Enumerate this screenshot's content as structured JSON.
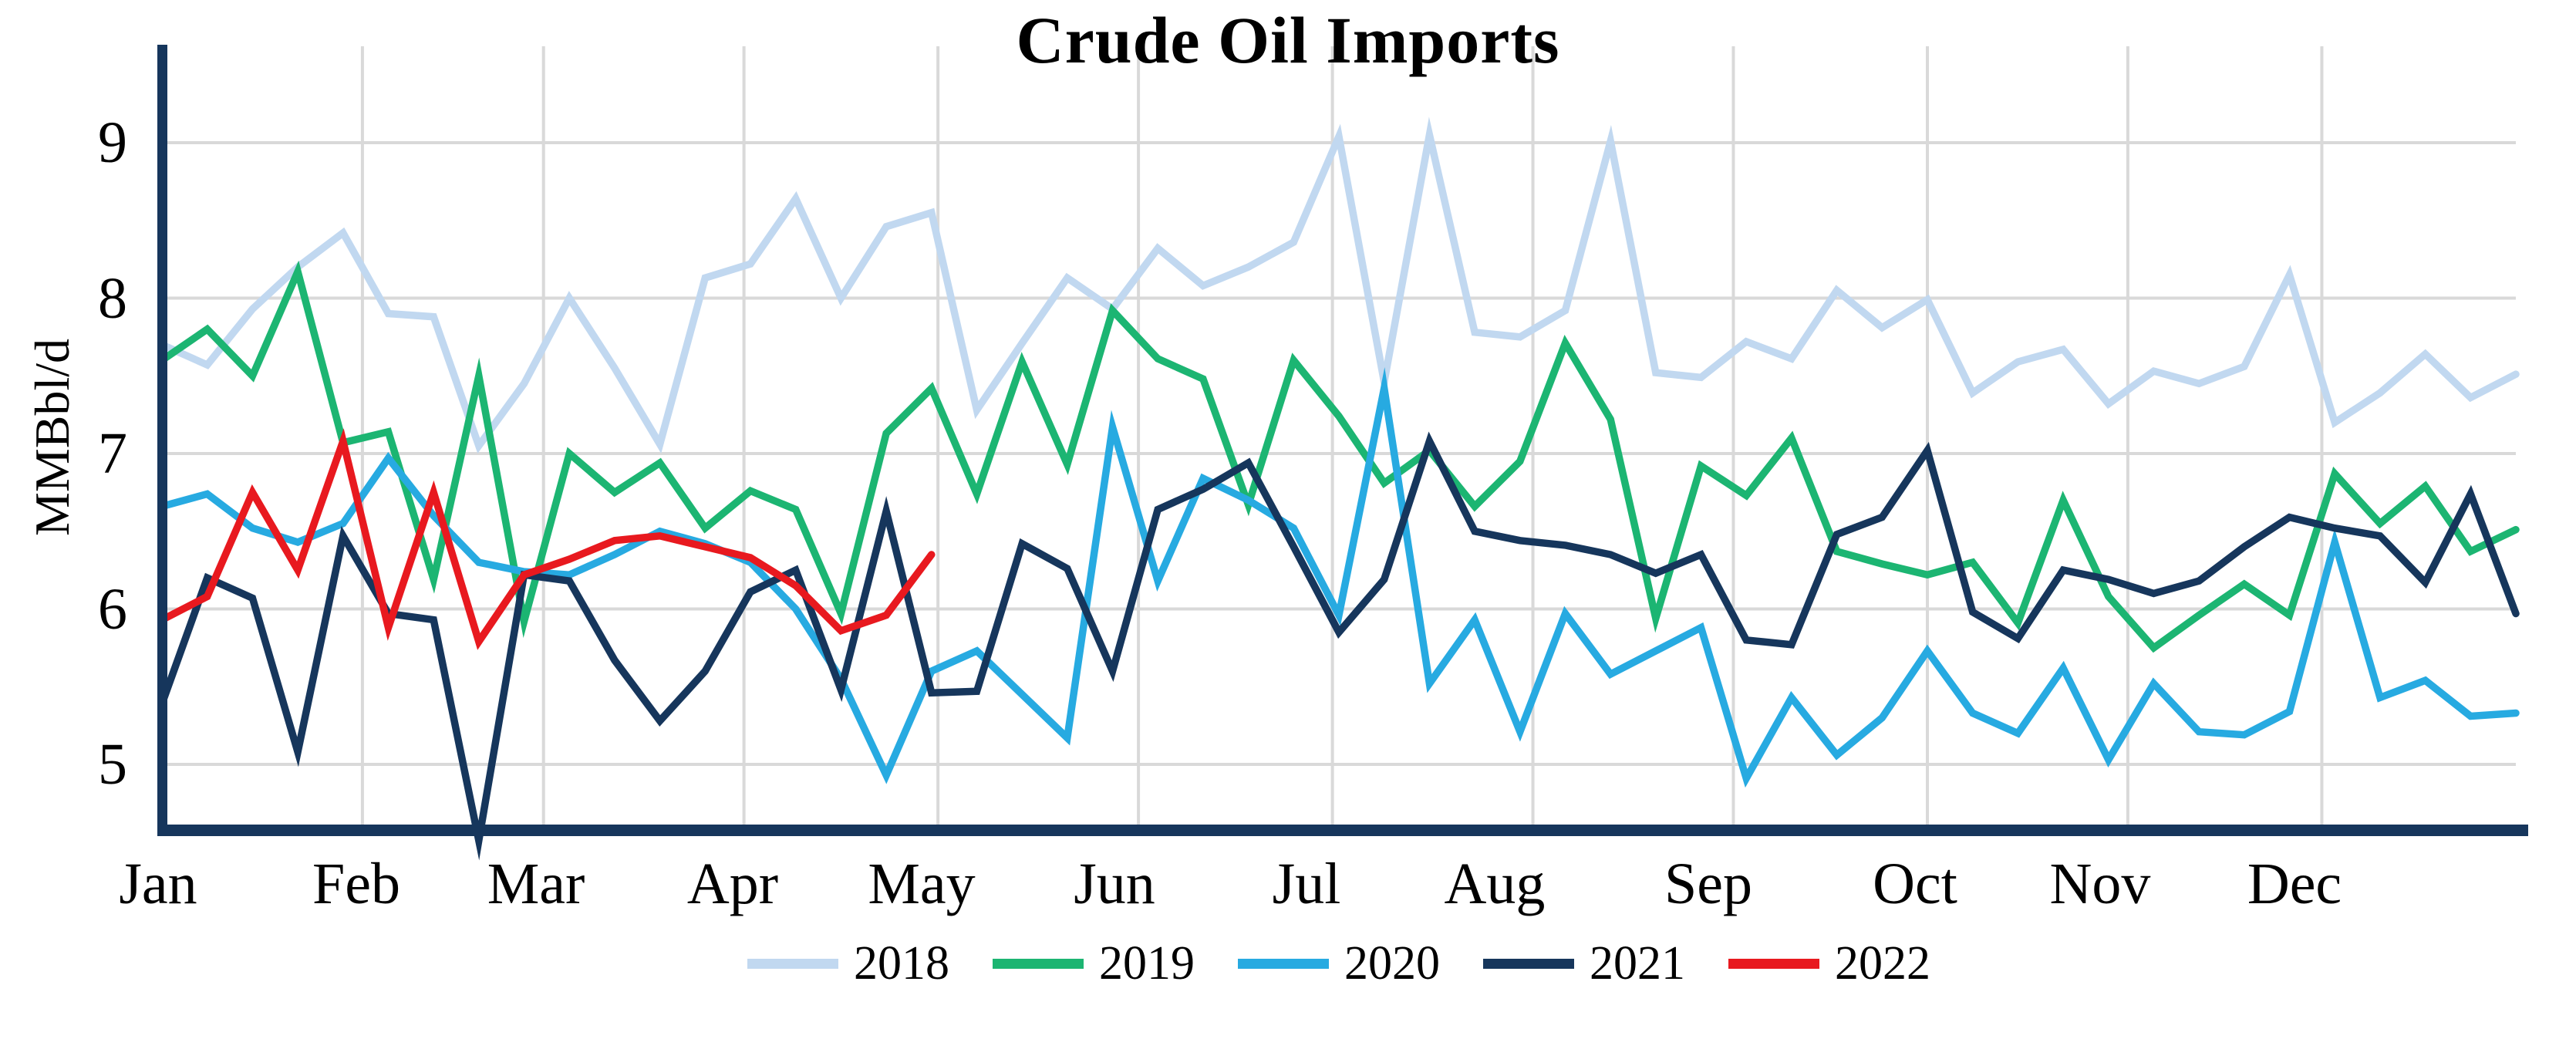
{
  "chart_data": {
    "type": "line",
    "title": "Crude Oil Imports",
    "ylabel": "MMBbl/d",
    "xlabel": "",
    "ylim": [
      4.55,
      9.6
    ],
    "yticks": [
      9,
      8,
      7,
      6,
      5
    ],
    "months": [
      "Jan",
      "Feb",
      "Mar",
      "Apr",
      "May",
      "Jun",
      "Jul",
      "Aug",
      "Sep",
      "Oct",
      "Nov",
      "Dec"
    ],
    "grid": true,
    "legend_position": "bottom",
    "x_unit": "weekly (53 points per full year)",
    "colors": {
      "grid": "#d9d9d9",
      "axis": "#16365c",
      "text": "#000000"
    },
    "series": [
      {
        "name": "2018",
        "color": "#c1d8f0",
        "values": [
          7.7,
          7.57,
          7.93,
          8.2,
          8.42,
          7.9,
          7.88,
          7.05,
          7.45,
          8.0,
          7.55,
          7.06,
          8.13,
          8.22,
          8.64,
          8.0,
          8.46,
          8.55,
          7.28,
          7.71,
          8.13,
          7.93,
          8.32,
          8.08,
          8.2,
          8.36,
          9.04,
          7.46,
          9.05,
          7.78,
          7.75,
          7.92,
          9.01,
          7.52,
          7.49,
          7.72,
          7.61,
          8.05,
          7.81,
          7.99,
          7.39,
          7.59,
          7.67,
          7.32,
          7.53,
          7.45,
          7.56,
          8.15,
          7.2,
          7.39,
          7.64,
          7.36,
          7.51
        ]
      },
      {
        "name": "2019",
        "color": "#1cb572",
        "values": [
          7.6,
          7.8,
          7.5,
          8.17,
          7.07,
          7.14,
          6.19,
          7.5,
          5.92,
          7.0,
          6.75,
          6.94,
          6.52,
          6.76,
          6.64,
          5.97,
          7.13,
          7.42,
          6.74,
          7.59,
          6.93,
          7.92,
          7.61,
          7.48,
          6.67,
          7.6,
          7.24,
          6.81,
          7.02,
          6.66,
          6.95,
          7.71,
          7.22,
          5.94,
          6.92,
          6.73,
          7.1,
          6.37,
          6.29,
          6.22,
          6.3,
          5.91,
          6.7,
          6.08,
          5.75,
          5.96,
          6.16,
          5.96,
          6.87,
          6.55,
          6.79,
          6.37,
          6.51
        ]
      },
      {
        "name": "2020",
        "color": "#27aae1",
        "values": [
          6.66,
          6.74,
          6.52,
          6.43,
          6.55,
          6.97,
          6.6,
          6.3,
          6.24,
          6.22,
          6.35,
          6.5,
          6.42,
          6.3,
          6.0,
          5.55,
          4.93,
          5.6,
          5.73,
          5.45,
          5.17,
          7.17,
          6.18,
          6.84,
          6.7,
          6.52,
          5.96,
          7.42,
          5.52,
          5.93,
          5.21,
          5.97,
          5.58,
          5.73,
          5.88,
          4.91,
          5.43,
          5.06,
          5.3,
          5.73,
          5.33,
          5.2,
          5.62,
          5.03,
          5.52,
          5.21,
          5.19,
          5.34,
          6.43,
          5.43,
          5.54,
          5.31,
          5.33
        ]
      },
      {
        "name": "2021",
        "color": "#16365c",
        "values": [
          5.39,
          6.2,
          6.07,
          5.08,
          6.47,
          5.97,
          5.93,
          4.51,
          6.22,
          6.18,
          5.67,
          5.28,
          5.6,
          6.11,
          6.25,
          5.48,
          6.63,
          5.46,
          5.47,
          6.42,
          6.26,
          5.6,
          6.64,
          6.77,
          6.94,
          6.4,
          5.85,
          6.19,
          7.08,
          6.5,
          6.44,
          6.41,
          6.35,
          6.23,
          6.35,
          5.8,
          5.77,
          6.48,
          6.59,
          7.02,
          5.98,
          5.81,
          6.25,
          6.19,
          6.1,
          6.18,
          6.4,
          6.59,
          6.52,
          6.47,
          6.17,
          6.74,
          5.97
        ]
      },
      {
        "name": "2022",
        "color": "#e8191f",
        "values": [
          5.93,
          6.08,
          6.75,
          6.25,
          7.08,
          5.88,
          6.75,
          5.79,
          6.22,
          6.32,
          6.44,
          6.47,
          6.4,
          6.33,
          6.15,
          5.86,
          5.96,
          6.35
        ]
      }
    ]
  }
}
